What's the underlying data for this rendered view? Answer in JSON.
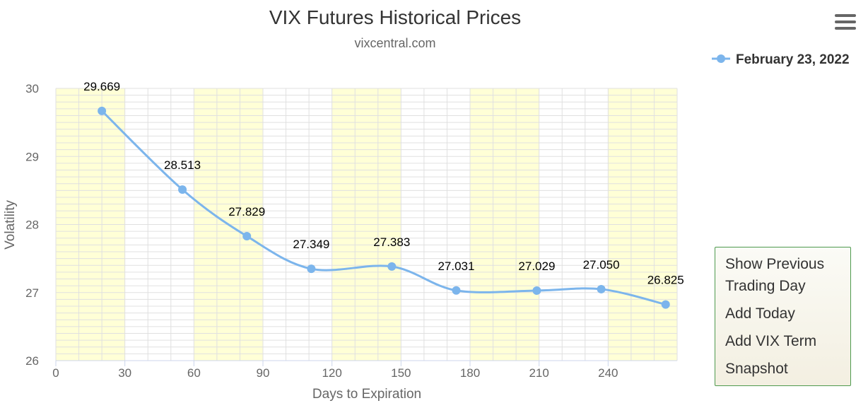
{
  "chart_data": {
    "type": "line",
    "title": "VIX Futures Historical Prices",
    "subtitle": "vixcentral.com",
    "xlabel": "Days to Expiration",
    "ylabel": "Volatility",
    "xlim": [
      0,
      270
    ],
    "ylim": [
      26,
      30
    ],
    "x_ticks": [
      0,
      30,
      60,
      90,
      120,
      150,
      180,
      210,
      240
    ],
    "y_ticks": [
      26,
      27,
      28,
      29,
      30
    ],
    "legend_position": "top-right",
    "grid": true,
    "highlight_bands": [
      [
        0,
        30
      ],
      [
        60,
        90
      ],
      [
        120,
        150
      ],
      [
        180,
        210
      ],
      [
        240,
        270
      ]
    ],
    "series": [
      {
        "name": "February 23, 2022",
        "color": "#7cb5ec",
        "x": [
          20,
          55,
          83,
          111,
          146,
          174,
          209,
          237,
          265
        ],
        "y": [
          29.669,
          28.513,
          27.829,
          27.349,
          27.383,
          27.031,
          27.029,
          27.05,
          26.825
        ],
        "labels": [
          "29.669",
          "28.513",
          "27.829",
          "27.349",
          "27.383",
          "27.031",
          "27.029",
          "27.050",
          "26.825"
        ]
      }
    ]
  },
  "menu": {
    "items": [
      "Show Previous Trading Day",
      "Add Today",
      "Add VIX Term",
      "Snapshot"
    ]
  },
  "colors": {
    "band": "#ffffd6",
    "grid": "#e0e0e0",
    "menu_border": "#4e9a4e"
  }
}
